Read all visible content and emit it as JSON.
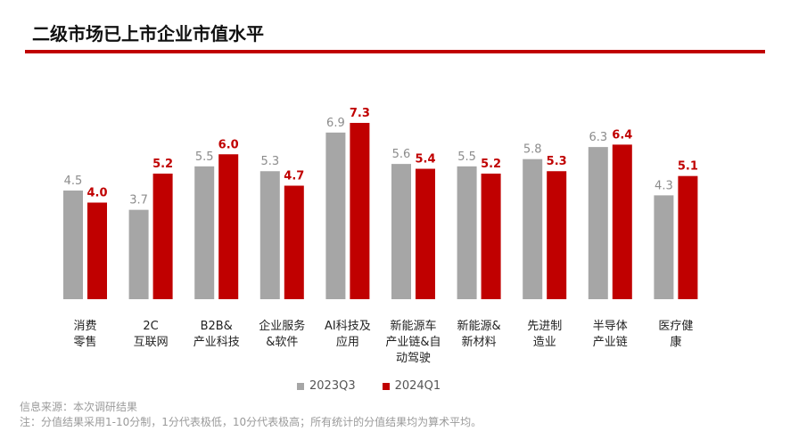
{
  "page": {
    "title": "二级市场已上市企业市值水平",
    "accent_color": "#C00000"
  },
  "chart_data": {
    "type": "bar",
    "categories": [
      "消费\n零售",
      "2C\n互联网",
      "B2B&\n产业科技",
      "企业服务\n&软件",
      "AI科技及\n应用",
      "新能源车\n产业链&自\n动驾驶",
      "新能源&\n新材料",
      "先进制\n造业",
      "半导体\n产业链",
      "医疗健\n康"
    ],
    "series": [
      {
        "name": "2023Q3",
        "color": "#A6A6A6",
        "values": [
          4.5,
          3.7,
          5.5,
          5.3,
          6.9,
          5.6,
          5.5,
          5.8,
          6.3,
          4.3
        ]
      },
      {
        "name": "2024Q1",
        "color": "#C00000",
        "values": [
          4.0,
          5.2,
          6.0,
          4.7,
          7.3,
          5.4,
          5.2,
          5.3,
          6.4,
          5.1
        ]
      }
    ],
    "ylim": [
      0,
      7.3
    ],
    "grid": false,
    "legend_position": "bottom"
  },
  "notes": {
    "source": "信息来源：本次调研结果",
    "remark": "注：分值结果采用1-10分制，1分代表极低，10分代表极高；所有统计的分值结果均为算术平均。"
  }
}
